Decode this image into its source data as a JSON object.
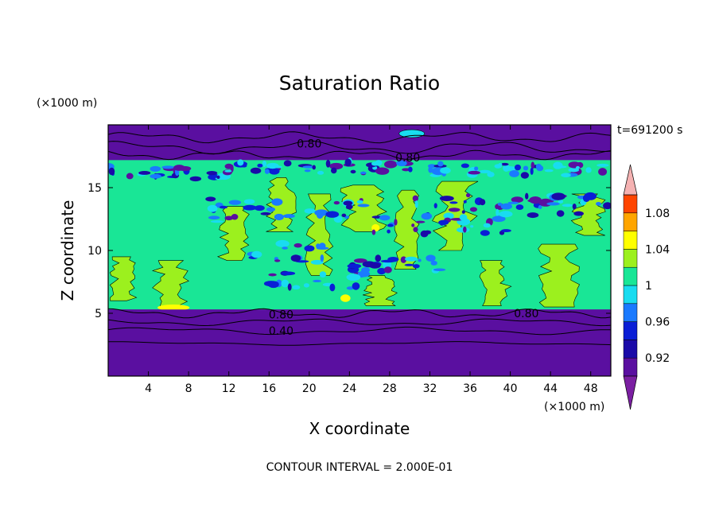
{
  "chart_data": {
    "type": "heatmap",
    "title": "Saturation Ratio",
    "xlabel": "X coordinate",
    "ylabel": "Z coordinate",
    "x_unit": "(×1000 m)",
    "y_unit": "(×1000 m)",
    "time_label": "t=691200 s",
    "footer": "CONTOUR INTERVAL = 2.000E-01",
    "xlim": [
      0,
      50
    ],
    "ylim": [
      0,
      20
    ],
    "x_ticks": [
      4,
      8,
      12,
      16,
      20,
      24,
      28,
      32,
      36,
      40,
      44,
      48
    ],
    "y_ticks": [
      5,
      10,
      15
    ],
    "colorbar": {
      "levels": [
        0.9,
        0.92,
        0.94,
        0.96,
        0.98,
        1.0,
        1.02,
        1.04,
        1.06,
        1.08,
        1.1
      ],
      "tick_labels": [
        "0.92",
        "0.96",
        "1",
        "1.04",
        "1.08"
      ],
      "tick_values": [
        0.92,
        0.96,
        1.0,
        1.04,
        1.08
      ],
      "colors": [
        "#5a0fa0",
        "#1a0aa8",
        "#0a1ed6",
        "#1a7aff",
        "#19dcf0",
        "#19e696",
        "#9cf01e",
        "#ffff00",
        "#ffa500",
        "#ff4500",
        "#ff2020"
      ],
      "over_color": "#f5b2b2",
      "under_color": "#7b1fa2"
    },
    "contour_labels": [
      {
        "text": "0.80",
        "x": 20.0,
        "z": 18.5
      },
      {
        "text": "0.80",
        "x": 29.8,
        "z": 17.4
      },
      {
        "text": "0.80",
        "x": 17.2,
        "z": 4.9
      },
      {
        "text": "0.80",
        "x": 41.6,
        "z": 5.0
      },
      {
        "text": "0.40",
        "x": 17.2,
        "z": 3.6
      }
    ],
    "regions": {
      "upper_dry": {
        "z_from": 17.2,
        "z_to": 20,
        "value_range": "<0.90"
      },
      "cloud_layer": {
        "z_from": 5.3,
        "z_to": 17.2,
        "value_range": "0.98-1.04"
      },
      "lower_dry": {
        "z_from": 0,
        "z_to": 5.3,
        "value_range": "<0.90"
      }
    }
  }
}
